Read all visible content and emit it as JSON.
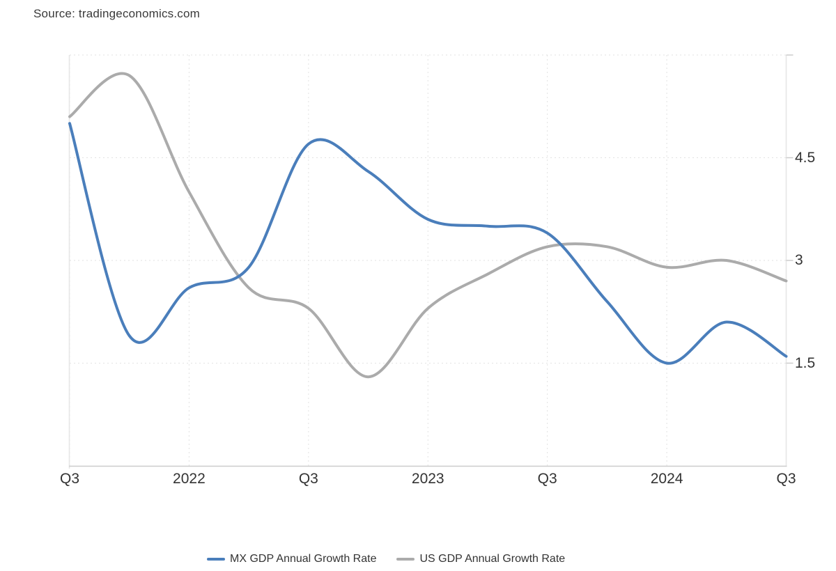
{
  "source_note": "Source: tradingeconomics.com",
  "chart_data": {
    "type": "line",
    "title": "",
    "categories": [
      "Q3 2021",
      "Q4 2021",
      "Q1 2022",
      "Q2 2022",
      "Q3 2022",
      "Q4 2022",
      "Q1 2023",
      "Q2 2023",
      "Q3 2023",
      "Q4 2023",
      "Q1 2024",
      "Q2 2024",
      "Q3 2024"
    ],
    "series": [
      {
        "name": "MX GDP Annual Growth Rate",
        "color": "#4a7ebb",
        "values": [
          5.0,
          1.9,
          2.6,
          2.9,
          4.7,
          4.3,
          3.6,
          3.5,
          3.4,
          2.4,
          1.5,
          2.1,
          1.6
        ]
      },
      {
        "name": "US GDP Annual Growth Rate",
        "color": "#ababab",
        "values": [
          5.1,
          5.7,
          4.0,
          2.6,
          2.3,
          1.3,
          2.3,
          2.8,
          3.2,
          3.2,
          2.9,
          3.0,
          2.7
        ]
      }
    ],
    "xlabel": "",
    "ylabel": "",
    "x_tick_labels": [
      "Q3",
      "2022",
      "Q3",
      "2023",
      "Q3",
      "2024",
      "Q3"
    ],
    "x_tick_quarter_indices": [
      0,
      2,
      4,
      6,
      8,
      10,
      12
    ],
    "y_tick_labels": [
      "1.5",
      "3",
      "4.5"
    ],
    "y_tick_values": [
      1.5,
      3,
      4.5
    ],
    "ylim": [
      0,
      6
    ],
    "grid": "dotted",
    "legend_position": "bottom-center",
    "colors": {
      "grid_line": "#e2e2e2",
      "axis_side_line": "#e6e6e6",
      "axis_bottom_line": "#cccccc",
      "tick_mark": "#cccccc",
      "label_text": "#333333"
    }
  }
}
